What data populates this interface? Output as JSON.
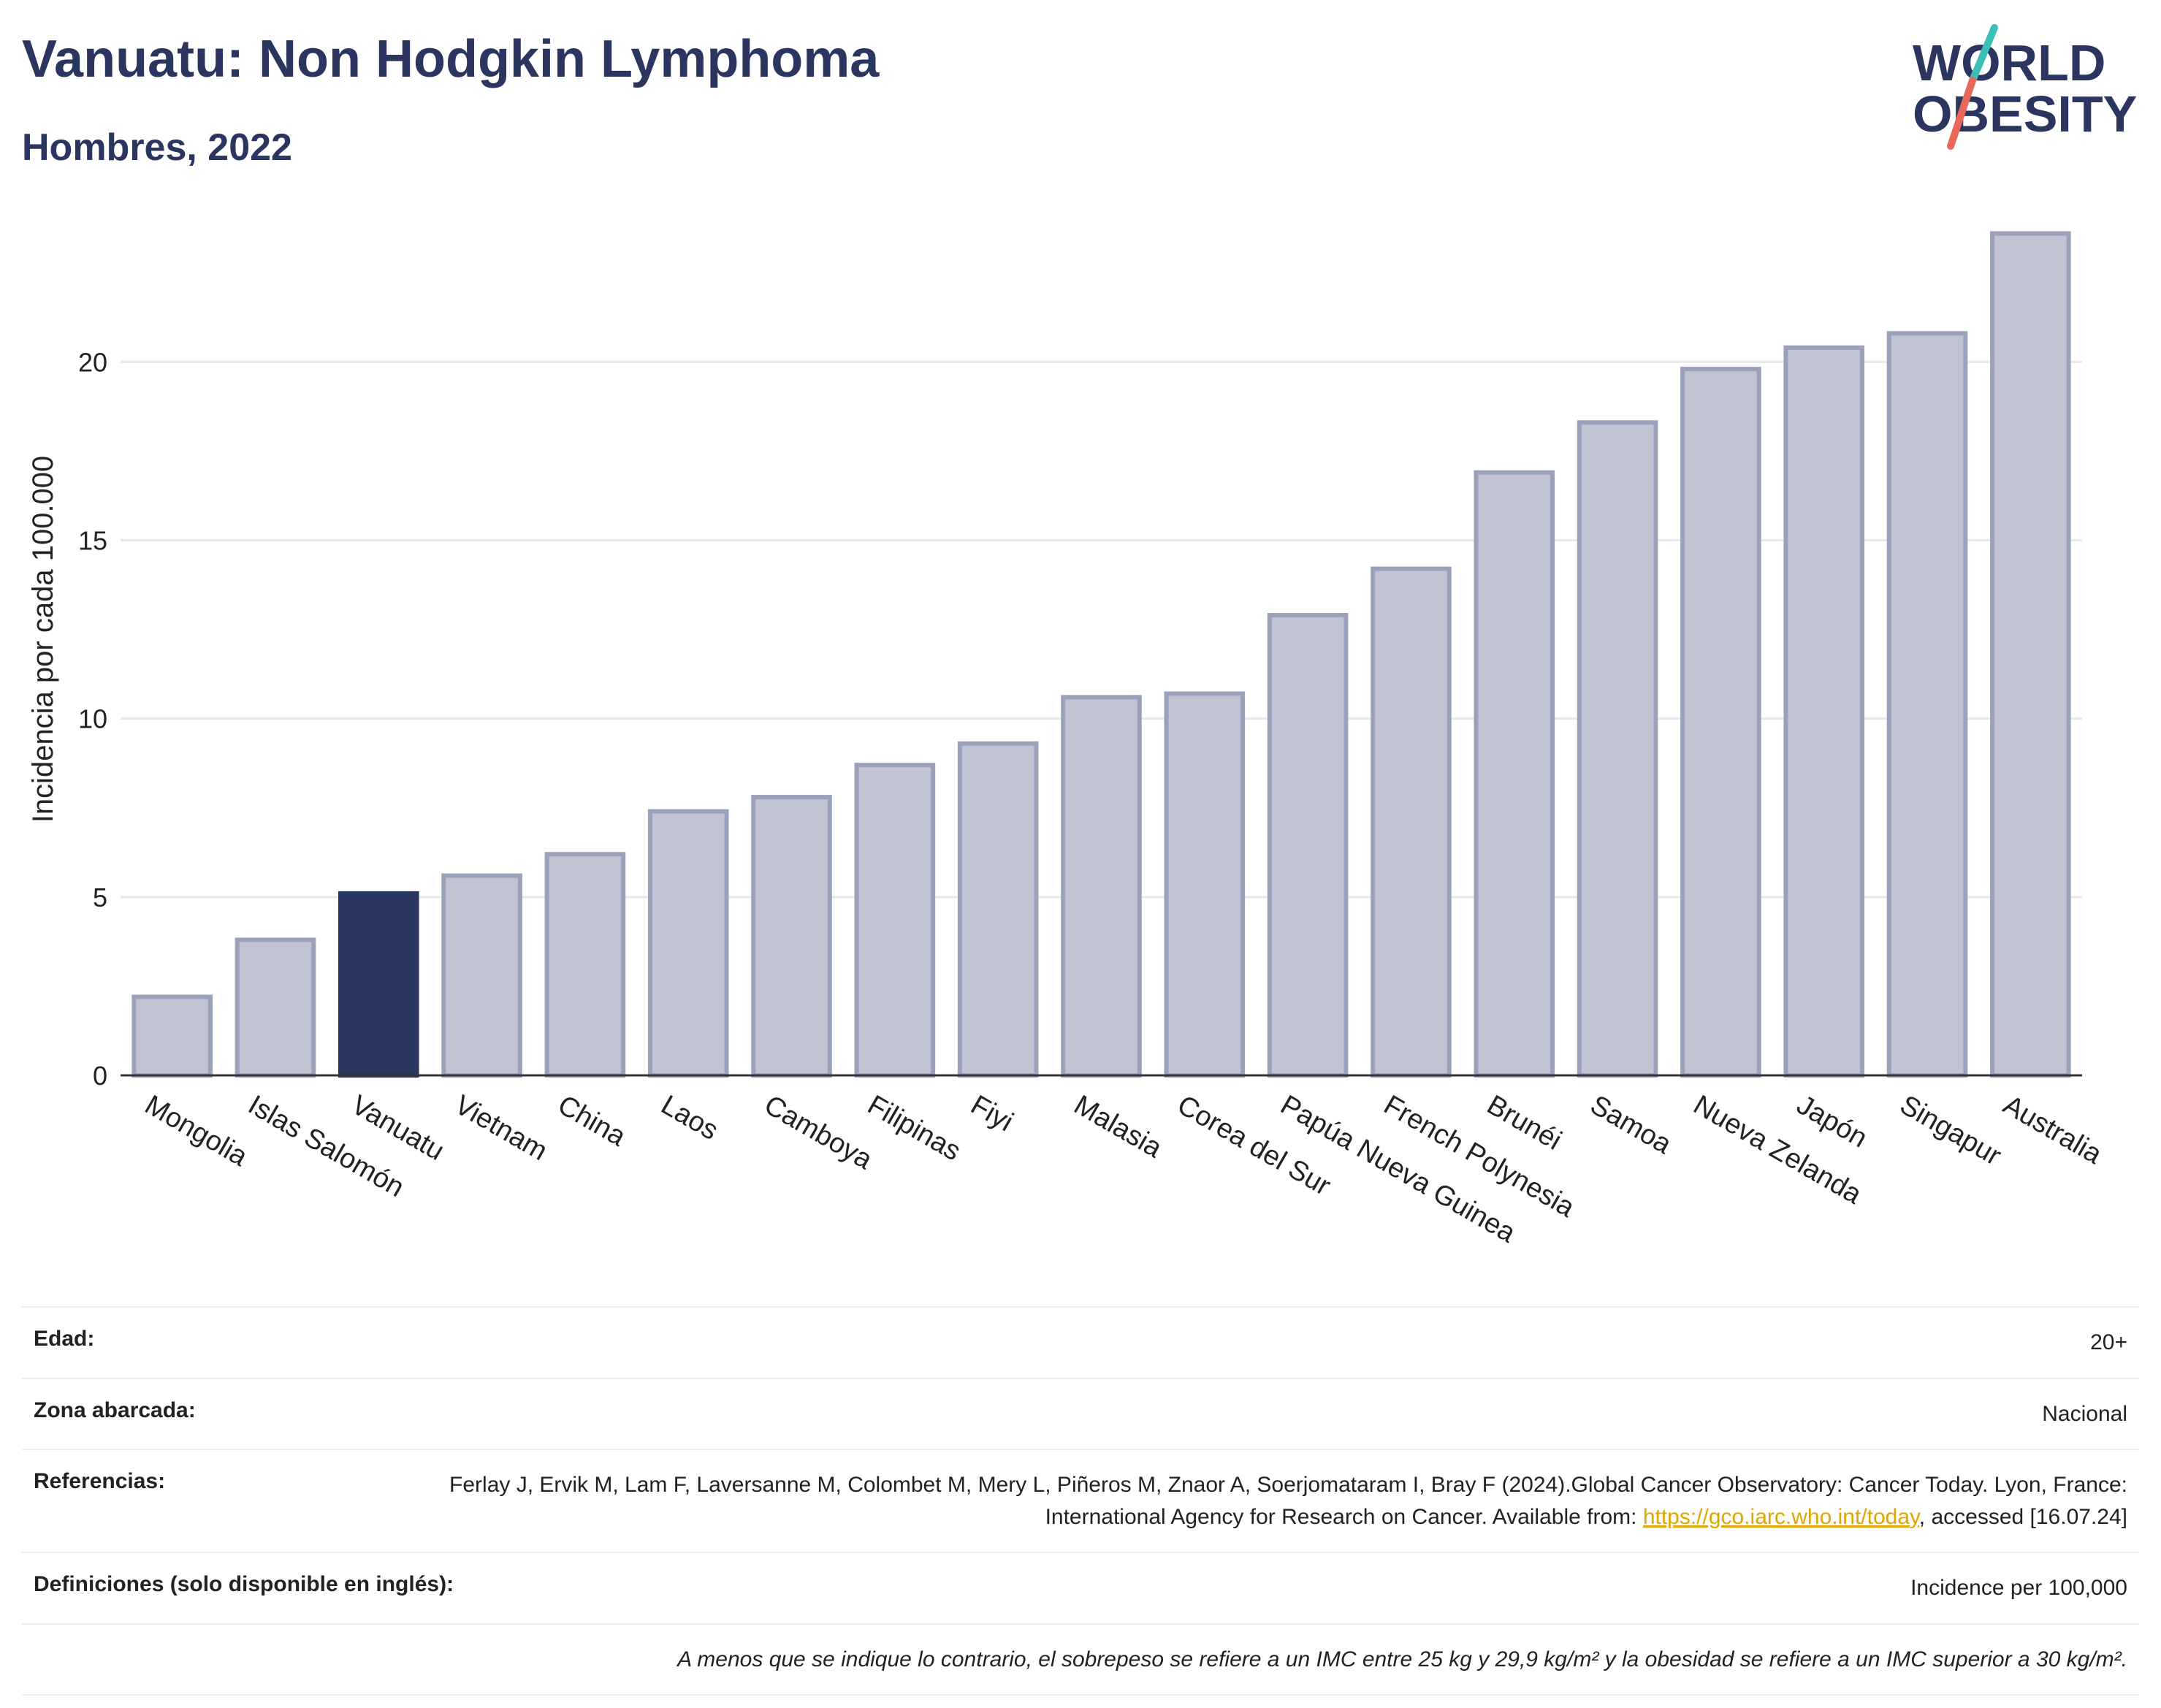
{
  "header": {
    "title": "Vanuatu: Non Hodgkin Lymphoma",
    "subtitle": "Hombres, 2022"
  },
  "logo": {
    "line1": "WORLD",
    "line2": "OBESITY",
    "colors": {
      "text": "#2a3560",
      "slash_top": "#3cbfb5",
      "slash_bottom": "#e8695a"
    }
  },
  "chart_data": {
    "type": "bar",
    "ylabel": "Incidencia por cada 100.000",
    "ylim": [
      0,
      24
    ],
    "yticks": [
      0,
      5,
      10,
      15,
      20
    ],
    "grid": true,
    "highlight": "Vanuatu",
    "colors": {
      "bar": "#c0c4d0",
      "bar_stroke": "#9aa1bb",
      "highlight": "#2a3560",
      "grid": "#e6e8ee",
      "axis": "#333333"
    },
    "categories": [
      "Mongolia",
      "Islas Salomón",
      "Vanuatu",
      "Vietnam",
      "China",
      "Laos",
      "Camboya",
      "Filipinas",
      "Fiyi",
      "Malasia",
      "Corea del Sur",
      "Papúa Nueva Guinea",
      "French Polynesia",
      "Brunéi",
      "Samoa",
      "Nueva Zelanda",
      "Japón",
      "Singapur",
      "Australia"
    ],
    "values": [
      2.2,
      3.8,
      5.1,
      5.6,
      6.2,
      7.4,
      7.8,
      8.7,
      9.3,
      10.6,
      10.7,
      12.9,
      14.2,
      16.9,
      18.3,
      19.8,
      20.4,
      20.8,
      23.6
    ]
  },
  "meta": {
    "age_label": "Edad:",
    "age_value": "20+",
    "area_label": "Zona abarcada:",
    "area_value": "Nacional",
    "refs_label": "Referencias:",
    "refs_text_1": "Ferlay J, Ervik M, Lam F, Laversanne M, Colombet M, Mery L, Piñeros M, Znaor A, Soerjomataram I, Bray F (2024).Global Cancer Observatory: Cancer Today. Lyon, France: International Agency for Research on Cancer. Available from: ",
    "refs_link": "https://gco.iarc.who.int/today",
    "refs_text_2": ", accessed [16.07.24]",
    "defs_label": "Definiciones (solo disponible en inglés):",
    "defs_value": "Incidence per 100,000",
    "note": "A menos que se indique lo contrario, el sobrepeso se refiere a un IMC entre 25 kg y 29,9 kg/m² y la obesidad se refiere a un IMC superior a 30 kg/m²."
  }
}
